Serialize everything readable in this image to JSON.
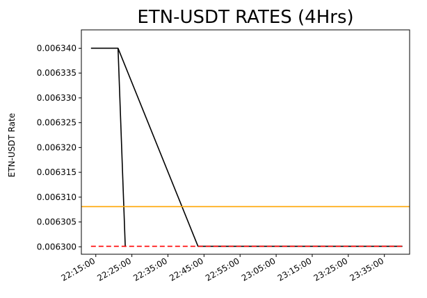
{
  "chart_data": {
    "type": "line",
    "title": "ETN-USDT RATES (4Hrs)",
    "xlabel": "",
    "ylabel": "ETN-USDT Rate",
    "x_ticks": [
      "22:15:00",
      "22:25:00",
      "22:35:00",
      "22:45:00",
      "22:55:00",
      "23:05:00",
      "23:15:00",
      "23:25:00",
      "23:35:00"
    ],
    "y_ticks": [
      "0.006300",
      "0.006305",
      "0.006310",
      "0.006315",
      "0.006320",
      "0.006325",
      "0.006330",
      "0.006335",
      "0.006340"
    ],
    "xlim": [
      "22:11:00",
      "23:42:00"
    ],
    "ylim": [
      0.0062985,
      0.0063437
    ],
    "grid": false,
    "series": [
      {
        "color": "#000000",
        "style": "solid",
        "x": [
          "22:13:40",
          "22:21:10",
          "22:23:10",
          "22:21:10",
          "22:43:20",
          "23:40:00"
        ],
        "y": [
          0.00634,
          0.00634,
          0.0063001,
          0.00634,
          0.0063001,
          0.0063001
        ]
      },
      {
        "color": "#ffa500",
        "style": "solid",
        "x": [
          "22:11:00",
          "23:42:00"
        ],
        "y": [
          0.0063081,
          0.0063081
        ]
      },
      {
        "color": "#ff0000",
        "style": "dashed",
        "x": [
          "22:13:40",
          "23:40:00"
        ],
        "y": [
          0.0063001,
          0.0063001
        ]
      }
    ]
  }
}
